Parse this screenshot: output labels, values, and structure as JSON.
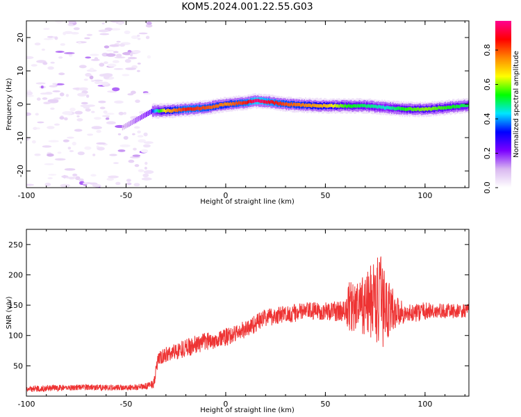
{
  "figure": {
    "title": "KOM5.2024.001.22.55.G03"
  },
  "chart_data": [
    {
      "type": "heatmap",
      "xlabel": "Height of straight line (km)",
      "ylabel": "Frequency (Hz)",
      "xlim": [
        -100,
        122
      ],
      "ylim": [
        -25,
        25
      ],
      "xticks": [
        -100,
        -50,
        0,
        50,
        100
      ],
      "yticks": [
        -20,
        -10,
        0,
        10,
        20
      ],
      "colorbar": {
        "label": "Normalized spectral amplitude",
        "range": [
          0,
          0.97
        ],
        "ticks": [
          "0.0",
          "0.2",
          "0.4",
          "0.6",
          "0.8"
        ],
        "tick_values": [
          0.0,
          0.2,
          0.4,
          0.6,
          0.8
        ],
        "colormap": [
          "#ffffff",
          "#d9b8f0",
          "#7b00ff",
          "#0000ff",
          "#00e5ff",
          "#00ff00",
          "#ffff00",
          "#ff8800",
          "#ff0000",
          "#ff0090"
        ]
      },
      "ridge": {
        "heights_km": [
          -37,
          -30,
          -20,
          -10,
          0,
          10,
          15,
          20,
          30,
          40,
          50,
          60,
          70,
          80,
          90,
          100,
          110,
          122
        ],
        "frequency_hz": [
          -2,
          -2,
          -1.5,
          -1,
          0,
          0.5,
          1,
          0.8,
          0,
          -0.3,
          -0.5,
          -0.5,
          -0.5,
          -1,
          -1.5,
          -1.5,
          -1,
          -0.3
        ],
        "amplitude": [
          0.35,
          0.7,
          0.85,
          0.8,
          0.75,
          0.85,
          0.95,
          0.9,
          0.8,
          0.75,
          0.7,
          0.55,
          0.5,
          0.45,
          0.55,
          0.6,
          0.55,
          0.5
        ]
      },
      "grid": false
    },
    {
      "type": "line",
      "xlabel": "Height of straight line (km)",
      "ylabel": "SNR (v/v)",
      "xlim": [
        -100,
        122
      ],
      "ylim": [
        0,
        275
      ],
      "xticks": [
        -100,
        -50,
        0,
        50,
        100
      ],
      "yticks": [
        50,
        100,
        150,
        200,
        250
      ],
      "series": [
        {
          "color": "#ee3333",
          "x": [
            -100,
            -90,
            -80,
            -70,
            -60,
            -50,
            -40,
            -36,
            -34,
            -30,
            -20,
            -10,
            0,
            10,
            20,
            30,
            40,
            50,
            60,
            62,
            65,
            70,
            75,
            78,
            80,
            85,
            88,
            90,
            100,
            110,
            122
          ],
          "y": [
            12,
            13,
            14,
            15,
            14,
            14,
            16,
            22,
            60,
            68,
            80,
            90,
            97,
            110,
            130,
            135,
            140,
            140,
            140,
            150,
            145,
            150,
            160,
            150,
            150,
            140,
            140,
            135,
            140,
            140,
            140
          ],
          "noise": [
            5,
            5,
            5,
            5,
            5,
            5,
            5,
            8,
            12,
            13,
            15,
            15,
            15,
            15,
            15,
            15,
            15,
            15,
            18,
            45,
            40,
            50,
            75,
            80,
            60,
            30,
            20,
            15,
            15,
            12,
            12
          ]
        }
      ],
      "grid": false
    }
  ]
}
